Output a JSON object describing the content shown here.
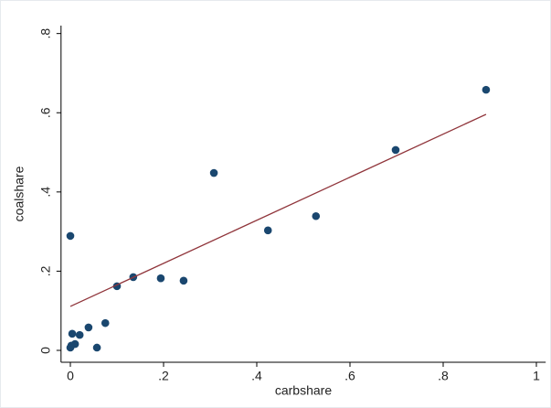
{
  "chart_data": {
    "type": "scatter",
    "x_label": "carbshare",
    "y_label": "coalshare",
    "xlim": [
      -0.02,
      1.02
    ],
    "ylim": [
      -0.03,
      0.82
    ],
    "xticks": [
      0,
      {
        "value": 0.2,
        "label": ".2"
      },
      {
        "value": 0.4,
        "label": ".4"
      },
      {
        "value": 0.6,
        "label": ".6"
      },
      {
        "value": 0.8,
        "label": ".8"
      },
      1
    ],
    "yticks": [
      0,
      {
        "value": 0.2,
        "label": ".2"
      },
      {
        "value": 0.4,
        "label": ".4"
      },
      {
        "value": 0.6,
        "label": ".6"
      },
      {
        "value": 0.8,
        "label": ".8"
      }
    ],
    "series": [
      {
        "mode": "markers",
        "color": "#1a476f",
        "x": [
          0,
          0,
          0.004,
          0.01,
          0.02,
          0.039,
          0.057,
          0.075,
          0.1,
          0.135,
          0.194,
          0.243,
          0.308,
          0.424,
          0.527,
          0.698,
          0.892,
          0.002
        ],
        "values": [
          0.289,
          0.007,
          0.042,
          0.016,
          0.039,
          0.058,
          0.007,
          0.069,
          0.162,
          0.185,
          0.182,
          0.176,
          0.448,
          0.303,
          0.339,
          0.506,
          0.658,
          0.012
        ]
      },
      {
        "mode": "line",
        "color": "#90353b",
        "x": [
          0,
          0.892
        ],
        "values": [
          0.111,
          0.596
        ]
      }
    ]
  }
}
